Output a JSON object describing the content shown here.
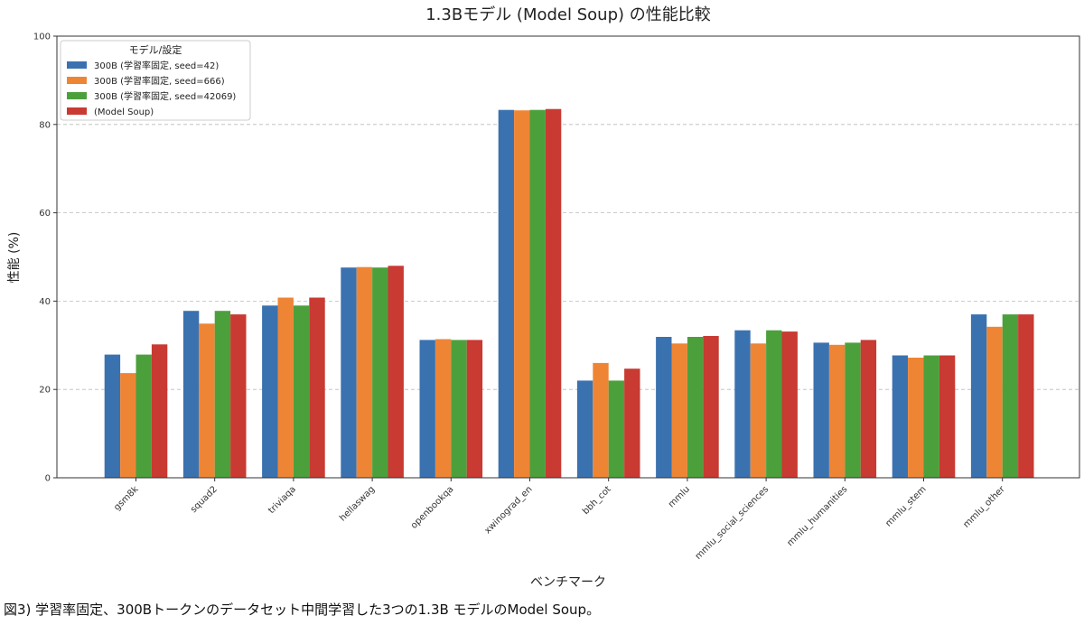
{
  "chart_data": {
    "type": "bar",
    "title": "1.3Bモデル (Model Soup) の性能比較",
    "xlabel": "ベンチマーク",
    "ylabel": "性能 (%)",
    "ylim": [
      0,
      100
    ],
    "yticks": [
      0,
      20,
      40,
      60,
      80,
      100
    ],
    "grid": true,
    "legend_title": "モデル/設定",
    "legend_position": "top-left",
    "categories": [
      "gsm8k",
      "squad2",
      "triviaqa",
      "hellaswag",
      "openbookqa",
      "xwinograd_en",
      "bbh_cot",
      "mmlu",
      "mmlu_social_sciences",
      "mmlu_humanities",
      "mmlu_stem",
      "mmlu_other"
    ],
    "series": [
      {
        "name": "300B (学習率固定, seed=42)",
        "color": "#3a72b0",
        "values": [
          27.9,
          37.8,
          39.0,
          47.6,
          31.2,
          83.3,
          22.0,
          31.9,
          33.4,
          30.6,
          27.7,
          37.0
        ]
      },
      {
        "name": "300B (学習率固定, seed=666)",
        "color": "#ee8535",
        "values": [
          23.7,
          34.9,
          40.8,
          47.7,
          31.4,
          83.2,
          26.0,
          30.4,
          30.4,
          30.1,
          27.2,
          34.2
        ]
      },
      {
        "name": "300B (学習率固定, seed=42069)",
        "color": "#4ca03c",
        "values": [
          27.9,
          37.8,
          39.0,
          47.6,
          31.2,
          83.3,
          22.0,
          31.9,
          33.4,
          30.6,
          27.7,
          37.0
        ]
      },
      {
        "name": "(Model Soup)",
        "color": "#c83a32",
        "values": [
          30.2,
          37.0,
          40.8,
          48.0,
          31.2,
          83.5,
          24.7,
          32.1,
          33.1,
          31.2,
          27.7,
          37.0
        ]
      }
    ]
  },
  "caption": "図3) 学習率固定、300Bトークンのデータセット中間学習した3つの1.3B モデルのModel Soup。"
}
